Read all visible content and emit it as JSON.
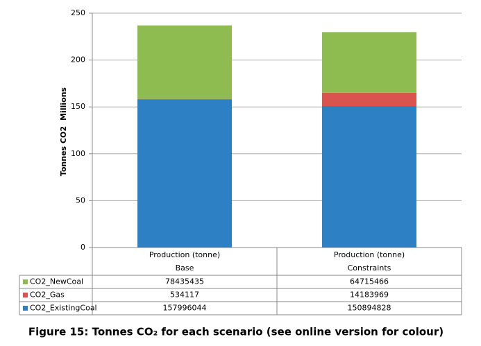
{
  "chart_data": {
    "type": "stacked_bar",
    "title": "Figure 15: Tonnes CO₂ for each scenario (see online version for colour)",
    "y_label": "Tonnes CO2",
    "y_unit": "Millions",
    "category_group": "Production (tonne)",
    "categories": [
      "Base",
      "Constraints"
    ],
    "series": [
      {
        "name": "CO2_ExistingCoal",
        "color": "#2e80c4",
        "values": [
          157.996044,
          150.894828
        ],
        "value_labels": [
          "157996044",
          "150894828"
        ]
      },
      {
        "name": "CO2_Gas",
        "color": "#d9534f",
        "values": [
          0.534117,
          14.183969
        ],
        "value_labels": [
          "534117",
          "14183969"
        ]
      },
      {
        "name": "CO2_NewCoal",
        "color": "#8fbc50",
        "values": [
          78.435435,
          64.715466
        ],
        "value_labels": [
          "78435435",
          "64715466"
        ]
      }
    ],
    "ylim": [
      0,
      250
    ],
    "yticks": [
      0,
      50,
      100,
      150,
      200,
      250
    ],
    "grid": true
  }
}
